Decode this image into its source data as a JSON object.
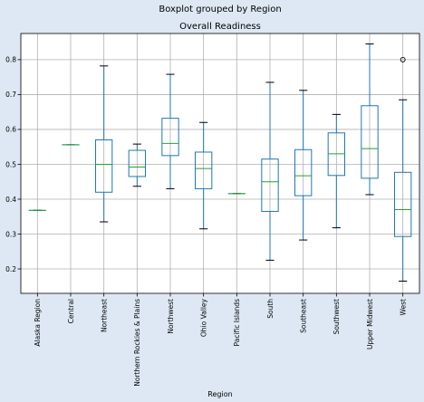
{
  "chart_data": {
    "type": "box",
    "suptitle": "Boxplot grouped by Region",
    "title": "Overall Readiness",
    "xlabel": "Region",
    "ylabel": "",
    "ylim": [
      0.13,
      0.875
    ],
    "yticks": [
      0.2,
      0.3,
      0.4,
      0.5,
      0.6,
      0.7,
      0.8
    ],
    "grid": true,
    "colors": {
      "box": "#1f77b4",
      "median": "#2ca02c",
      "whisker": "#000000",
      "background": "#dde8f4",
      "plot_bg": "#ffffff"
    },
    "categories": [
      "Alaska Region",
      "Central",
      "Northeast",
      "Northern Rockies & Plains",
      "Northwest",
      "Ohio Valley",
      "Pacific Islands",
      "South",
      "Southeast",
      "Southwest",
      "Upper Midwest",
      "West"
    ],
    "boxes": [
      {
        "category": "Alaska Region",
        "whislo": 0.368,
        "q1": 0.368,
        "med": 0.368,
        "q3": 0.368,
        "whishi": 0.368,
        "fliers": []
      },
      {
        "category": "Central",
        "whislo": 0.556,
        "q1": 0.556,
        "med": 0.556,
        "q3": 0.556,
        "whishi": 0.556,
        "fliers": []
      },
      {
        "category": "Northeast",
        "whislo": 0.335,
        "q1": 0.42,
        "med": 0.5,
        "q3": 0.57,
        "whishi": 0.782,
        "fliers": []
      },
      {
        "category": "Northern Rockies & Plains",
        "whislo": 0.437,
        "q1": 0.465,
        "med": 0.492,
        "q3": 0.54,
        "whishi": 0.558,
        "fliers": []
      },
      {
        "category": "Northwest",
        "whislo": 0.43,
        "q1": 0.525,
        "med": 0.56,
        "q3": 0.632,
        "whishi": 0.758,
        "fliers": []
      },
      {
        "category": "Ohio Valley",
        "whislo": 0.315,
        "q1": 0.43,
        "med": 0.488,
        "q3": 0.535,
        "whishi": 0.62,
        "fliers": []
      },
      {
        "category": "Pacific Islands",
        "whislo": 0.416,
        "q1": 0.416,
        "med": 0.416,
        "q3": 0.416,
        "whishi": 0.416,
        "fliers": []
      },
      {
        "category": "South",
        "whislo": 0.225,
        "q1": 0.365,
        "med": 0.45,
        "q3": 0.515,
        "whishi": 0.735,
        "fliers": []
      },
      {
        "category": "Southeast",
        "whislo": 0.283,
        "q1": 0.41,
        "med": 0.467,
        "q3": 0.542,
        "whishi": 0.712,
        "fliers": []
      },
      {
        "category": "Southwest",
        "whislo": 0.318,
        "q1": 0.468,
        "med": 0.53,
        "q3": 0.59,
        "whishi": 0.643,
        "fliers": []
      },
      {
        "category": "Upper Midwest",
        "whislo": 0.413,
        "q1": 0.46,
        "med": 0.545,
        "q3": 0.668,
        "whishi": 0.845,
        "fliers": []
      },
      {
        "category": "West",
        "whislo": 0.165,
        "q1": 0.293,
        "med": 0.37,
        "q3": 0.477,
        "whishi": 0.685,
        "fliers": [
          0.8
        ]
      }
    ]
  }
}
